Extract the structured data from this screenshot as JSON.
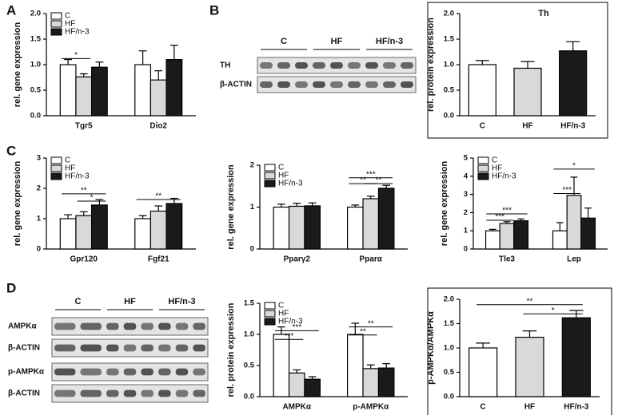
{
  "panel_labels": [
    "A",
    "B",
    "C",
    "D"
  ],
  "blots": [
    {
      "lanes": [
        "C",
        "HF",
        "HF/n-3"
      ],
      "rows": [
        "TH",
        "β-ACTIN"
      ]
    },
    {
      "lanes": [
        "C",
        "HF",
        "HF/n-3"
      ],
      "rows": [
        "AMPKα",
        "β-ACTIN",
        "p-AMPKα",
        "β-ACTIN"
      ]
    }
  ],
  "chart_data": [
    {
      "type": "bar",
      "ylabel": "rel. gene expression",
      "categories": [
        "Tgr5",
        "Dio2"
      ],
      "series": [
        {
          "name": "C",
          "color": "#ffffff",
          "values": [
            1.0,
            1.0
          ],
          "errors": [
            0.1,
            0.27
          ]
        },
        {
          "name": "HF",
          "color": "#d9d9d9",
          "values": [
            0.76,
            0.7
          ],
          "errors": [
            0.06,
            0.18
          ]
        },
        {
          "name": "HF/n-3",
          "color": "#1a1a1a",
          "values": [
            0.95,
            1.1
          ],
          "errors": [
            0.1,
            0.28
          ]
        }
      ],
      "ylim": [
        0,
        2
      ],
      "yticks": [
        {
          "value": 0,
          "label": "0.0"
        },
        0.5,
        {
          "value": 1,
          "label": "1.0"
        },
        1.5,
        {
          "value": 2,
          "label": "2.0"
        }
      ],
      "grid": false,
      "legend": "upper left",
      "significance": [
        {
          "text": "*",
          "category": "Tgr5",
          "between": [
            "C",
            "HF"
          ],
          "y": 1.12
        }
      ]
    },
    {
      "type": "bar",
      "title": "Th",
      "ylabel": "rel. protein expression",
      "categories": [
        "C",
        "HF",
        "HF/n-3"
      ],
      "values": [
        1.0,
        0.93,
        1.27
      ],
      "errors": [
        0.08,
        0.13,
        0.18
      ],
      "colors": [
        "#ffffff",
        "#d9d9d9",
        "#1a1a1a"
      ],
      "ylim": [
        0,
        2
      ],
      "yticks": [
        {
          "value": 0,
          "label": "0.0"
        },
        0.5,
        {
          "value": 1,
          "label": "1.0"
        },
        1.5,
        {
          "value": 2,
          "label": "2.0"
        }
      ],
      "grid": false,
      "frame": true
    },
    {
      "type": "bar",
      "ylabel": "rel. gene expression",
      "categories": [
        "Gpr120",
        "Fgf21"
      ],
      "series": [
        {
          "name": "C",
          "color": "#ffffff",
          "values": [
            1.0,
            1.0
          ],
          "errors": [
            0.13,
            0.1
          ]
        },
        {
          "name": "HF",
          "color": "#d9d9d9",
          "values": [
            1.1,
            1.25
          ],
          "errors": [
            0.13,
            0.17
          ]
        },
        {
          "name": "HF/n-3",
          "color": "#1a1a1a",
          "values": [
            1.45,
            1.5
          ],
          "errors": [
            0.18,
            0.17
          ]
        }
      ],
      "ylim": [
        0,
        3
      ],
      "yticks": [
        0,
        1,
        2,
        3
      ],
      "grid": false,
      "legend": "upper left",
      "significance": [
        {
          "text": "**",
          "category": "Gpr120",
          "between": [
            "C",
            "HF/n-3"
          ],
          "y": 1.82
        },
        {
          "text": "*",
          "category": "Gpr120",
          "between": [
            "HF",
            "HF/n-3"
          ],
          "y": 1.58
        },
        {
          "text": "**",
          "category": "Fgf21",
          "between": [
            "C",
            "HF/n-3"
          ],
          "y": 1.63
        }
      ]
    },
    {
      "type": "bar",
      "ylabel": "rel. gene expression",
      "categories": [
        "Pparγ2",
        "Pparα"
      ],
      "series": [
        {
          "name": "C",
          "color": "#ffffff",
          "values": [
            1.0,
            1.0
          ],
          "errors": [
            0.07,
            0.05
          ]
        },
        {
          "name": "HF",
          "color": "#d9d9d9",
          "values": [
            1.02,
            1.2
          ],
          "errors": [
            0.07,
            0.06
          ]
        },
        {
          "name": "HF/n-3",
          "color": "#1a1a1a",
          "values": [
            1.03,
            1.45
          ],
          "errors": [
            0.07,
            0.07
          ]
        }
      ],
      "ylim": [
        0,
        2
      ],
      "yticks": [
        0,
        1,
        2
      ],
      "grid": false,
      "legend": "upper left",
      "significance": [
        {
          "text": "***",
          "category": "Pparα",
          "between": [
            "C",
            "HF/n-3"
          ],
          "y": 1.7
        },
        {
          "text": "**",
          "category": "Pparα",
          "between": [
            "C",
            "HF"
          ],
          "y": 1.56
        },
        {
          "text": "**",
          "category": "Pparα",
          "between": [
            "HF",
            "HF/n-3"
          ],
          "y": 1.56
        }
      ]
    },
    {
      "type": "bar",
      "ylabel": "rel. gene expression",
      "categories": [
        "Tle3",
        "Lep"
      ],
      "series": [
        {
          "name": "C",
          "color": "#ffffff",
          "values": [
            1.0,
            1.0
          ],
          "errors": [
            0.08,
            0.45
          ]
        },
        {
          "name": "HF",
          "color": "#d9d9d9",
          "values": [
            1.4,
            2.95
          ],
          "errors": [
            0.1,
            1.0
          ]
        },
        {
          "name": "HF/n-3",
          "color": "#1a1a1a",
          "values": [
            1.55,
            1.7
          ],
          "errors": [
            0.1,
            0.55
          ]
        }
      ],
      "ylim": [
        0,
        5
      ],
      "yticks": [
        0,
        1,
        2,
        3,
        4,
        5
      ],
      "grid": false,
      "legend": "upper left",
      "significance": [
        {
          "text": "***",
          "category": "Tle3",
          "between": [
            "C",
            "HF/n-3"
          ],
          "y": 1.93
        },
        {
          "text": "***",
          "category": "Tle3",
          "between": [
            "C",
            "HF"
          ],
          "y": 1.58
        },
        {
          "text": "*",
          "category": "Lep",
          "between": [
            "C",
            "HF/n-3"
          ],
          "y": 4.39
        },
        {
          "text": "***",
          "category": "Lep",
          "between": [
            "C",
            "HF"
          ],
          "y": 3.05
        }
      ]
    },
    {
      "type": "bar",
      "ylabel": "rel. protein expression",
      "categories": [
        "AMPKα",
        "p-AMPKα"
      ],
      "series": [
        {
          "name": "C",
          "color": "#ffffff",
          "values": [
            1.0,
            1.0
          ],
          "errors": [
            0.12,
            0.18
          ]
        },
        {
          "name": "HF",
          "color": "#d9d9d9",
          "values": [
            0.38,
            0.45
          ],
          "errors": [
            0.05,
            0.06
          ]
        },
        {
          "name": "HF/n-3",
          "color": "#1a1a1a",
          "values": [
            0.28,
            0.46
          ],
          "errors": [
            0.04,
            0.07
          ]
        }
      ],
      "ylim": [
        0,
        1.5
      ],
      "yticks": [
        {
          "value": 0,
          "label": "0.0"
        },
        0.5,
        {
          "value": 1,
          "label": "1.0"
        },
        1.5
      ],
      "grid": false,
      "legend": "upper left",
      "significance": [
        {
          "text": "***",
          "category": "AMPKα",
          "between": [
            "C",
            "HF/n-3"
          ],
          "y": 1.06
        },
        {
          "text": "***",
          "category": "AMPKα",
          "between": [
            "C",
            "HF"
          ],
          "y": 0.92
        },
        {
          "text": "**",
          "category": "p-AMPKα",
          "between": [
            "C",
            "HF/n-3"
          ],
          "y": 1.12
        },
        {
          "text": "**",
          "category": "p-AMPKα",
          "between": [
            "C",
            "HF"
          ],
          "y": 0.99
        }
      ]
    },
    {
      "type": "bar",
      "ylabel": "p-AMPKα/AMPKα",
      "categories": [
        "C",
        "HF",
        "HF/n-3"
      ],
      "values": [
        1.0,
        1.22,
        1.62
      ],
      "errors": [
        0.1,
        0.13,
        0.15
      ],
      "colors": [
        "#ffffff",
        "#d9d9d9",
        "#1a1a1a"
      ],
      "ylim": [
        0,
        2
      ],
      "yticks": [
        {
          "value": 0,
          "label": "0.0"
        },
        0.5,
        {
          "value": 1,
          "label": "1.0"
        },
        1.5,
        {
          "value": 2,
          "label": "2.0"
        }
      ],
      "grid": false,
      "frame": true,
      "significance": [
        {
          "text": "**",
          "between": [
            "C",
            "HF/n-3"
          ],
          "y": 1.89
        },
        {
          "text": "*",
          "between": [
            "HF",
            "HF/n-3"
          ],
          "y": 1.7
        }
      ]
    }
  ]
}
